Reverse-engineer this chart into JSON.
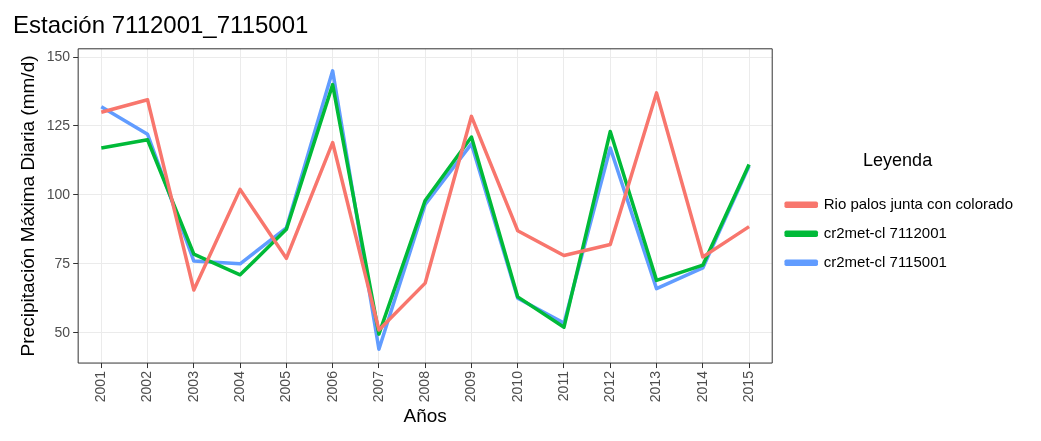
{
  "chart_data": {
    "type": "line",
    "title": "Estación 7112001_7115001",
    "xlabel": "Años",
    "ylabel": "Precipitación Máxima Diaria (mm/d)",
    "legend_title": "Leyenda",
    "legend": "right",
    "grid": true,
    "marker": "none",
    "line_style": "solid",
    "categories": [
      "2001",
      "2002",
      "2003",
      "2004",
      "2005",
      "2006",
      "2007",
      "2008",
      "2009",
      "2010",
      "2011",
      "2012",
      "2013",
      "2014",
      "2015"
    ],
    "ylim": [
      39,
      153
    ],
    "yticks": [
      50,
      75,
      100,
      125,
      150
    ],
    "series": [
      {
        "name": "Rio palos junta con colorado",
        "color": "#f8766d",
        "values": [
          130,
          134.5,
          65.5,
          102,
          77,
          119,
          51,
          68,
          128.5,
          87,
          78,
          82,
          137,
          77.5,
          88.5
        ]
      },
      {
        "name": "cr2met-cl 7112001",
        "color": "#00ba38",
        "values": [
          117,
          120,
          78.5,
          71,
          87.5,
          140,
          49.5,
          98,
          121,
          63,
          52,
          123,
          69,
          74.5,
          111
        ]
      },
      {
        "name": "cr2met-cl 7115001",
        "color": "#619cff",
        "values": [
          132,
          122,
          76,
          75,
          88,
          145,
          44,
          96.5,
          118.5,
          62.5,
          53.5,
          117,
          66,
          73.5,
          110.5
        ]
      }
    ]
  }
}
